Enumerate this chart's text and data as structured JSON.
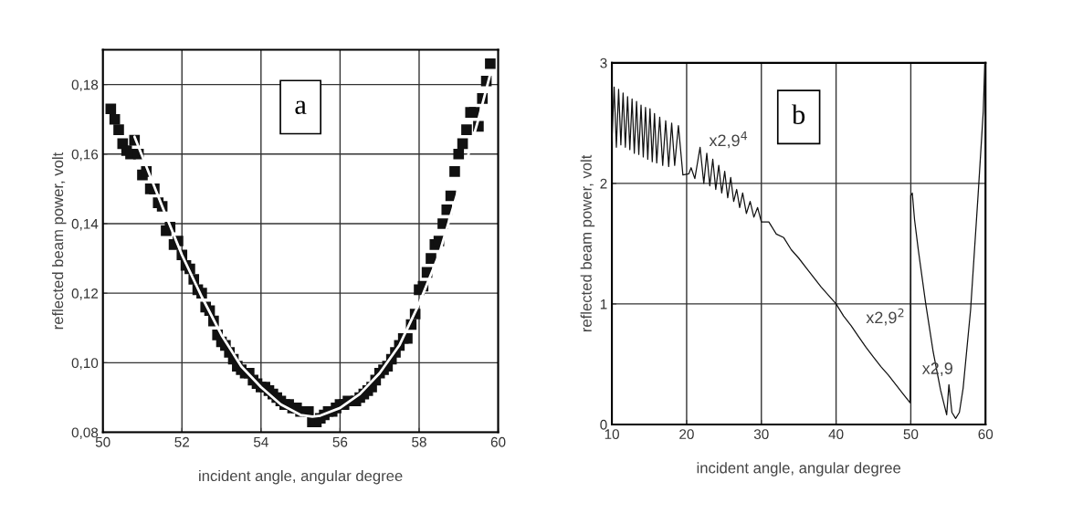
{
  "chart_data": [
    {
      "type": "scatter",
      "xlabel": "incident angle, angular degree",
      "ylabel": "reflected beam power, volt",
      "annotations": [
        "a"
      ],
      "xlim": [
        50,
        60
      ],
      "ylim": [
        0.08,
        0.19
      ],
      "xticks": [
        50,
        52,
        54,
        56,
        58,
        60
      ],
      "yticks": [
        {
          "value": 0.08,
          "label": "0,08"
        },
        {
          "value": 0.1,
          "label": "0,10"
        },
        {
          "value": 0.12,
          "label": "0,12"
        },
        {
          "value": 0.14,
          "label": "0,14"
        },
        {
          "value": 0.16,
          "label": "0,16"
        },
        {
          "value": 0.18,
          "label": "0,18"
        }
      ],
      "grid": true,
      "series": [
        {
          "marker": "square",
          "color": "#111111",
          "x": [
            50.2,
            50.3,
            50.4,
            50.5,
            50.6,
            50.7,
            50.8,
            50.9,
            51.0,
            51.1,
            51.2,
            51.3,
            51.4,
            51.5,
            51.6,
            51.7,
            51.8,
            51.9,
            52.0,
            52.1,
            52.2,
            52.3,
            52.4,
            52.5,
            52.6,
            52.7,
            52.8,
            52.9,
            53.0,
            53.1,
            53.2,
            53.3,
            53.4,
            53.5,
            53.6,
            53.7,
            53.8,
            53.9,
            54.0,
            54.1,
            54.2,
            54.3,
            54.4,
            54.5,
            54.6,
            54.7,
            54.8,
            54.9,
            55.0,
            55.2,
            55.3,
            55.4,
            55.5,
            55.6,
            55.7,
            55.8,
            55.9,
            56.0,
            56.1,
            56.2,
            56.4,
            56.5,
            56.6,
            56.7,
            56.8,
            56.9,
            57.0,
            57.1,
            57.2,
            57.3,
            57.4,
            57.5,
            57.6,
            57.7,
            57.8,
            57.9,
            58.0,
            58.1,
            58.2,
            58.3,
            58.4,
            58.5,
            58.6,
            58.7,
            58.8,
            58.9,
            59.0,
            59.1,
            59.2,
            59.3,
            59.4,
            59.5,
            59.6,
            59.7,
            59.8
          ],
          "values": [
            0.173,
            0.17,
            0.167,
            0.163,
            0.161,
            0.16,
            0.164,
            0.16,
            0.154,
            0.155,
            0.15,
            0.15,
            0.146,
            0.145,
            0.138,
            0.139,
            0.134,
            0.135,
            0.131,
            0.128,
            0.127,
            0.124,
            0.121,
            0.12,
            0.116,
            0.115,
            0.112,
            0.108,
            0.106,
            0.105,
            0.103,
            0.101,
            0.099,
            0.098,
            0.097,
            0.097,
            0.095,
            0.094,
            0.093,
            0.093,
            0.092,
            0.091,
            0.09,
            0.089,
            0.088,
            0.088,
            0.087,
            0.087,
            0.086,
            0.086,
            0.083,
            0.083,
            0.084,
            0.085,
            0.086,
            0.086,
            0.087,
            0.088,
            0.088,
            0.089,
            0.089,
            0.09,
            0.091,
            0.092,
            0.093,
            0.095,
            0.097,
            0.098,
            0.099,
            0.101,
            0.103,
            0.105,
            0.107,
            0.107,
            0.111,
            0.114,
            0.121,
            0.122,
            0.126,
            0.13,
            0.134,
            0.135,
            0.14,
            0.144,
            0.148,
            0.155,
            0.16,
            0.163,
            0.167,
            0.172,
            0.172,
            0.168,
            0.176,
            0.181,
            0.186
          ]
        },
        {
          "type": "line",
          "marker": "none",
          "color": "#ffffff",
          "x": [
            50.8,
            51.5,
            52,
            52.5,
            53,
            53.5,
            54,
            54.5,
            55,
            55.3,
            55.5,
            56,
            56.5,
            57,
            57.5,
            58,
            58.5,
            59,
            59.5,
            59.8
          ],
          "values": [
            0.165,
            0.145,
            0.131,
            0.119,
            0.108,
            0.099,
            0.093,
            0.088,
            0.085,
            0.0845,
            0.0848,
            0.087,
            0.091,
            0.097,
            0.105,
            0.117,
            0.131,
            0.15,
            0.17,
            0.183
          ]
        }
      ]
    },
    {
      "type": "line",
      "xlabel": "incident angle, angular degree",
      "ylabel": "reflected beam power, volt",
      "annotations": [
        "b",
        "x2,9$^{4}$",
        "x2,9$^{2}$",
        "x2,9"
      ],
      "xlim": [
        10,
        60
      ],
      "ylim": [
        0,
        3
      ],
      "xticks": [
        10,
        20,
        30,
        40,
        50,
        60
      ],
      "yticks": [
        0,
        1,
        2,
        3
      ],
      "grid": true,
      "series": [
        {
          "marker": "none",
          "color": "#111111",
          "x": [
            10,
            10.3,
            10.6,
            10.9,
            11.2,
            11.5,
            11.8,
            12.1,
            12.4,
            12.7,
            13.0,
            13.3,
            13.6,
            13.9,
            14.2,
            14.5,
            14.8,
            15.1,
            15.4,
            15.7,
            16.0,
            16.4,
            16.8,
            17.2,
            17.6,
            18.0,
            18.4,
            18.9,
            19.5,
            20.3,
            20.6,
            21.1,
            21.8,
            22.3,
            22.7,
            23.1,
            23.5,
            23.9,
            24.3,
            24.7,
            25.1,
            25.5,
            25.9,
            26.3,
            26.7,
            27.1,
            27.5,
            28.0,
            28.5,
            29.0,
            29.5,
            30.0,
            31,
            32,
            33,
            34,
            35,
            36,
            37,
            38,
            39,
            40,
            41,
            42,
            43,
            44,
            45,
            46,
            47,
            48,
            49,
            49.9,
            50.0,
            50.2,
            50.5,
            51,
            52,
            53,
            54,
            54.8,
            55.1,
            55.5,
            56.0,
            56.5,
            57,
            58,
            59,
            59.5,
            59.7,
            59.9
          ],
          "values": [
            2.35,
            2.8,
            2.3,
            2.78,
            2.32,
            2.75,
            2.3,
            2.72,
            2.28,
            2.7,
            2.25,
            2.68,
            2.24,
            2.65,
            2.22,
            2.63,
            2.2,
            2.62,
            2.18,
            2.58,
            2.17,
            2.55,
            2.15,
            2.52,
            2.14,
            2.5,
            2.15,
            2.48,
            2.07,
            2.08,
            2.13,
            2.04,
            2.3,
            2.0,
            2.25,
            1.98,
            2.2,
            1.95,
            2.15,
            1.92,
            2.1,
            1.88,
            2.05,
            1.85,
            1.95,
            1.8,
            1.92,
            1.75,
            1.85,
            1.72,
            1.8,
            1.68,
            1.68,
            1.58,
            1.55,
            1.45,
            1.38,
            1.3,
            1.22,
            1.14,
            1.07,
            1.0,
            0.9,
            0.82,
            0.73,
            0.64,
            0.56,
            0.48,
            0.41,
            0.33,
            0.25,
            0.18,
            1.9,
            1.92,
            1.7,
            1.45,
            1.0,
            0.6,
            0.28,
            0.08,
            0.33,
            0.1,
            0.05,
            0.1,
            0.3,
            0.95,
            1.9,
            2.4,
            2.6,
            3.0
          ]
        }
      ]
    }
  ]
}
